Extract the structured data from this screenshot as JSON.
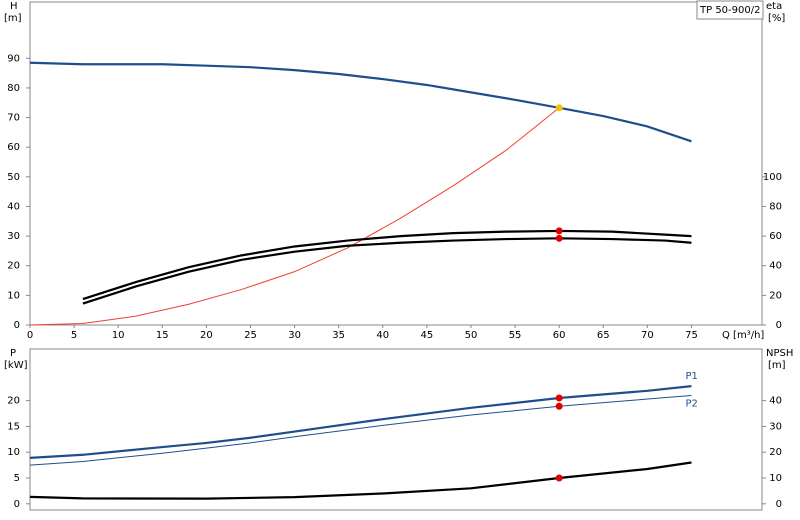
{
  "chart_data": [
    {
      "type": "line",
      "label": "TP 50-900/2",
      "y_label": "H",
      "y_unit": "[m]",
      "y2_label": "eta",
      "y2_unit": "[%]",
      "x_label": "Q [m³/h]",
      "xlim": [
        0,
        83
      ],
      "xticks": [
        0,
        5,
        10,
        15,
        20,
        25,
        30,
        35,
        40,
        45,
        50,
        55,
        60,
        65,
        70,
        75
      ],
      "ylim": [
        0,
        109
      ],
      "yticks": [
        0,
        10,
        20,
        30,
        40,
        50,
        60,
        70,
        80,
        90
      ],
      "y2lim": [
        0,
        218
      ],
      "y2ticks": [
        0,
        20,
        40,
        60,
        80,
        100
      ],
      "series": [
        {
          "color": "#1f4e8c",
          "x": [
            0,
            6,
            10,
            15,
            20,
            25,
            30,
            35,
            40,
            45,
            50,
            55,
            60,
            65,
            70,
            75
          ],
          "values": [
            88.5,
            88,
            88,
            88,
            87.5,
            87,
            86,
            84.7,
            83,
            81,
            78.5,
            76,
            73.3,
            70.5,
            67,
            62
          ]
        },
        {
          "color": "#f04030",
          "x": [
            0,
            6,
            12,
            18,
            24,
            30,
            36,
            42,
            48,
            54,
            60
          ],
          "values": [
            0,
            0.5,
            3,
            7,
            12,
            18,
            26,
            36,
            47,
            59,
            73.3
          ]
        },
        {
          "color": "#000000",
          "axis": "y2",
          "x": [
            6,
            12,
            18,
            24,
            30,
            36,
            42,
            48,
            54,
            60,
            66,
            72,
            75
          ],
          "values": [
            17.5,
            29,
            39,
            47,
            53,
            57,
            60,
            62,
            63,
            63.5,
            63,
            61,
            60
          ]
        },
        {
          "color": "#000000",
          "axis": "y2",
          "x": [
            6,
            12,
            18,
            24,
            30,
            36,
            42,
            48,
            54,
            60,
            66,
            72,
            75
          ],
          "values": [
            14.5,
            26,
            36,
            44,
            49.5,
            53.5,
            55.5,
            57,
            58,
            58.5,
            58,
            57,
            55.5
          ]
        }
      ],
      "points": [
        {
          "x": 60,
          "y": 73.3,
          "color": "#f5c400"
        },
        {
          "x": 60,
          "y": 63.5,
          "axis": "y2",
          "color": "#e00000"
        },
        {
          "x": 60,
          "y": 58.5,
          "axis": "y2",
          "color": "#e00000"
        }
      ]
    },
    {
      "type": "line",
      "y_label": "P",
      "y_unit": "[kW]",
      "y2_label": "NPSH",
      "y2_unit": "[m]",
      "xlim": [
        0,
        83
      ],
      "ylim": [
        -1.2,
        30
      ],
      "yticks": [
        0,
        5,
        10,
        15,
        20
      ],
      "y2lim": [
        -2.4,
        60
      ],
      "y2ticks": [
        0,
        10,
        20,
        30,
        40
      ],
      "series": [
        {
          "name": "P1",
          "color": "#1f4e8c",
          "x": [
            0,
            6,
            15,
            20,
            25,
            30,
            40,
            50,
            60,
            70,
            75
          ],
          "values": [
            8.9,
            9.5,
            11,
            11.8,
            12.8,
            14,
            16.4,
            18.6,
            20.5,
            21.9,
            22.8
          ]
        },
        {
          "name": "P2",
          "color": "#1f4e8c",
          "x": [
            0,
            6,
            15,
            20,
            25,
            30,
            40,
            50,
            60,
            70,
            75
          ],
          "values": [
            7.5,
            8.2,
            9.8,
            10.8,
            11.8,
            13,
            15.2,
            17.2,
            18.9,
            20.3,
            21
          ]
        },
        {
          "color": "#000000",
          "axis": "y2",
          "x": [
            0,
            6,
            20,
            30,
            40,
            50,
            60,
            70,
            75
          ],
          "values": [
            2.7,
            2.1,
            2,
            2.6,
            4,
            6,
            10,
            13.5,
            16
          ]
        }
      ],
      "points": [
        {
          "x": 60,
          "y": 20.5,
          "color": "#e00000"
        },
        {
          "x": 60,
          "y": 18.9,
          "color": "#e00000"
        },
        {
          "x": 60,
          "y": 10,
          "axis": "y2",
          "color": "#e00000"
        }
      ]
    }
  ]
}
